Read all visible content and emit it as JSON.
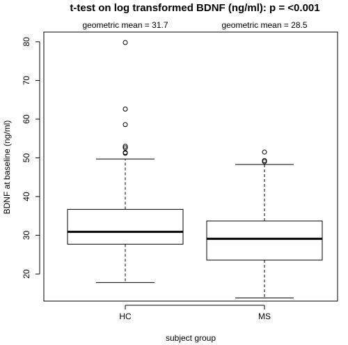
{
  "chart_data": {
    "type": "box",
    "title": "t-test on log transformed BDNF (ng/ml): p =  <0.001",
    "xlabel": "subject group",
    "ylabel": "BDNF at baseline (ng/ml)",
    "ylim": [
      13.0,
      82.5
    ],
    "yticks": [
      20,
      30,
      40,
      50,
      60,
      70,
      80
    ],
    "categories": [
      "HC",
      "MS"
    ],
    "annotations": [
      "geometric mean =  31.7",
      "geometric mean =  28.5"
    ],
    "boxes": [
      {
        "name": "HC",
        "whisker_low": 17.8,
        "q1": 27.7,
        "median": 30.9,
        "q3": 36.7,
        "whisker_high": 49.7,
        "outliers": [
          51.2,
          51.4,
          52.6,
          53.0,
          58.6,
          62.6,
          79.8
        ]
      },
      {
        "name": "MS",
        "whisker_low": 13.8,
        "q1": 23.6,
        "median": 29.1,
        "q3": 33.7,
        "whisker_high": 48.3,
        "outliers": [
          49.0,
          49.3,
          51.5
        ]
      }
    ],
    "grid": false,
    "legend": "none"
  }
}
